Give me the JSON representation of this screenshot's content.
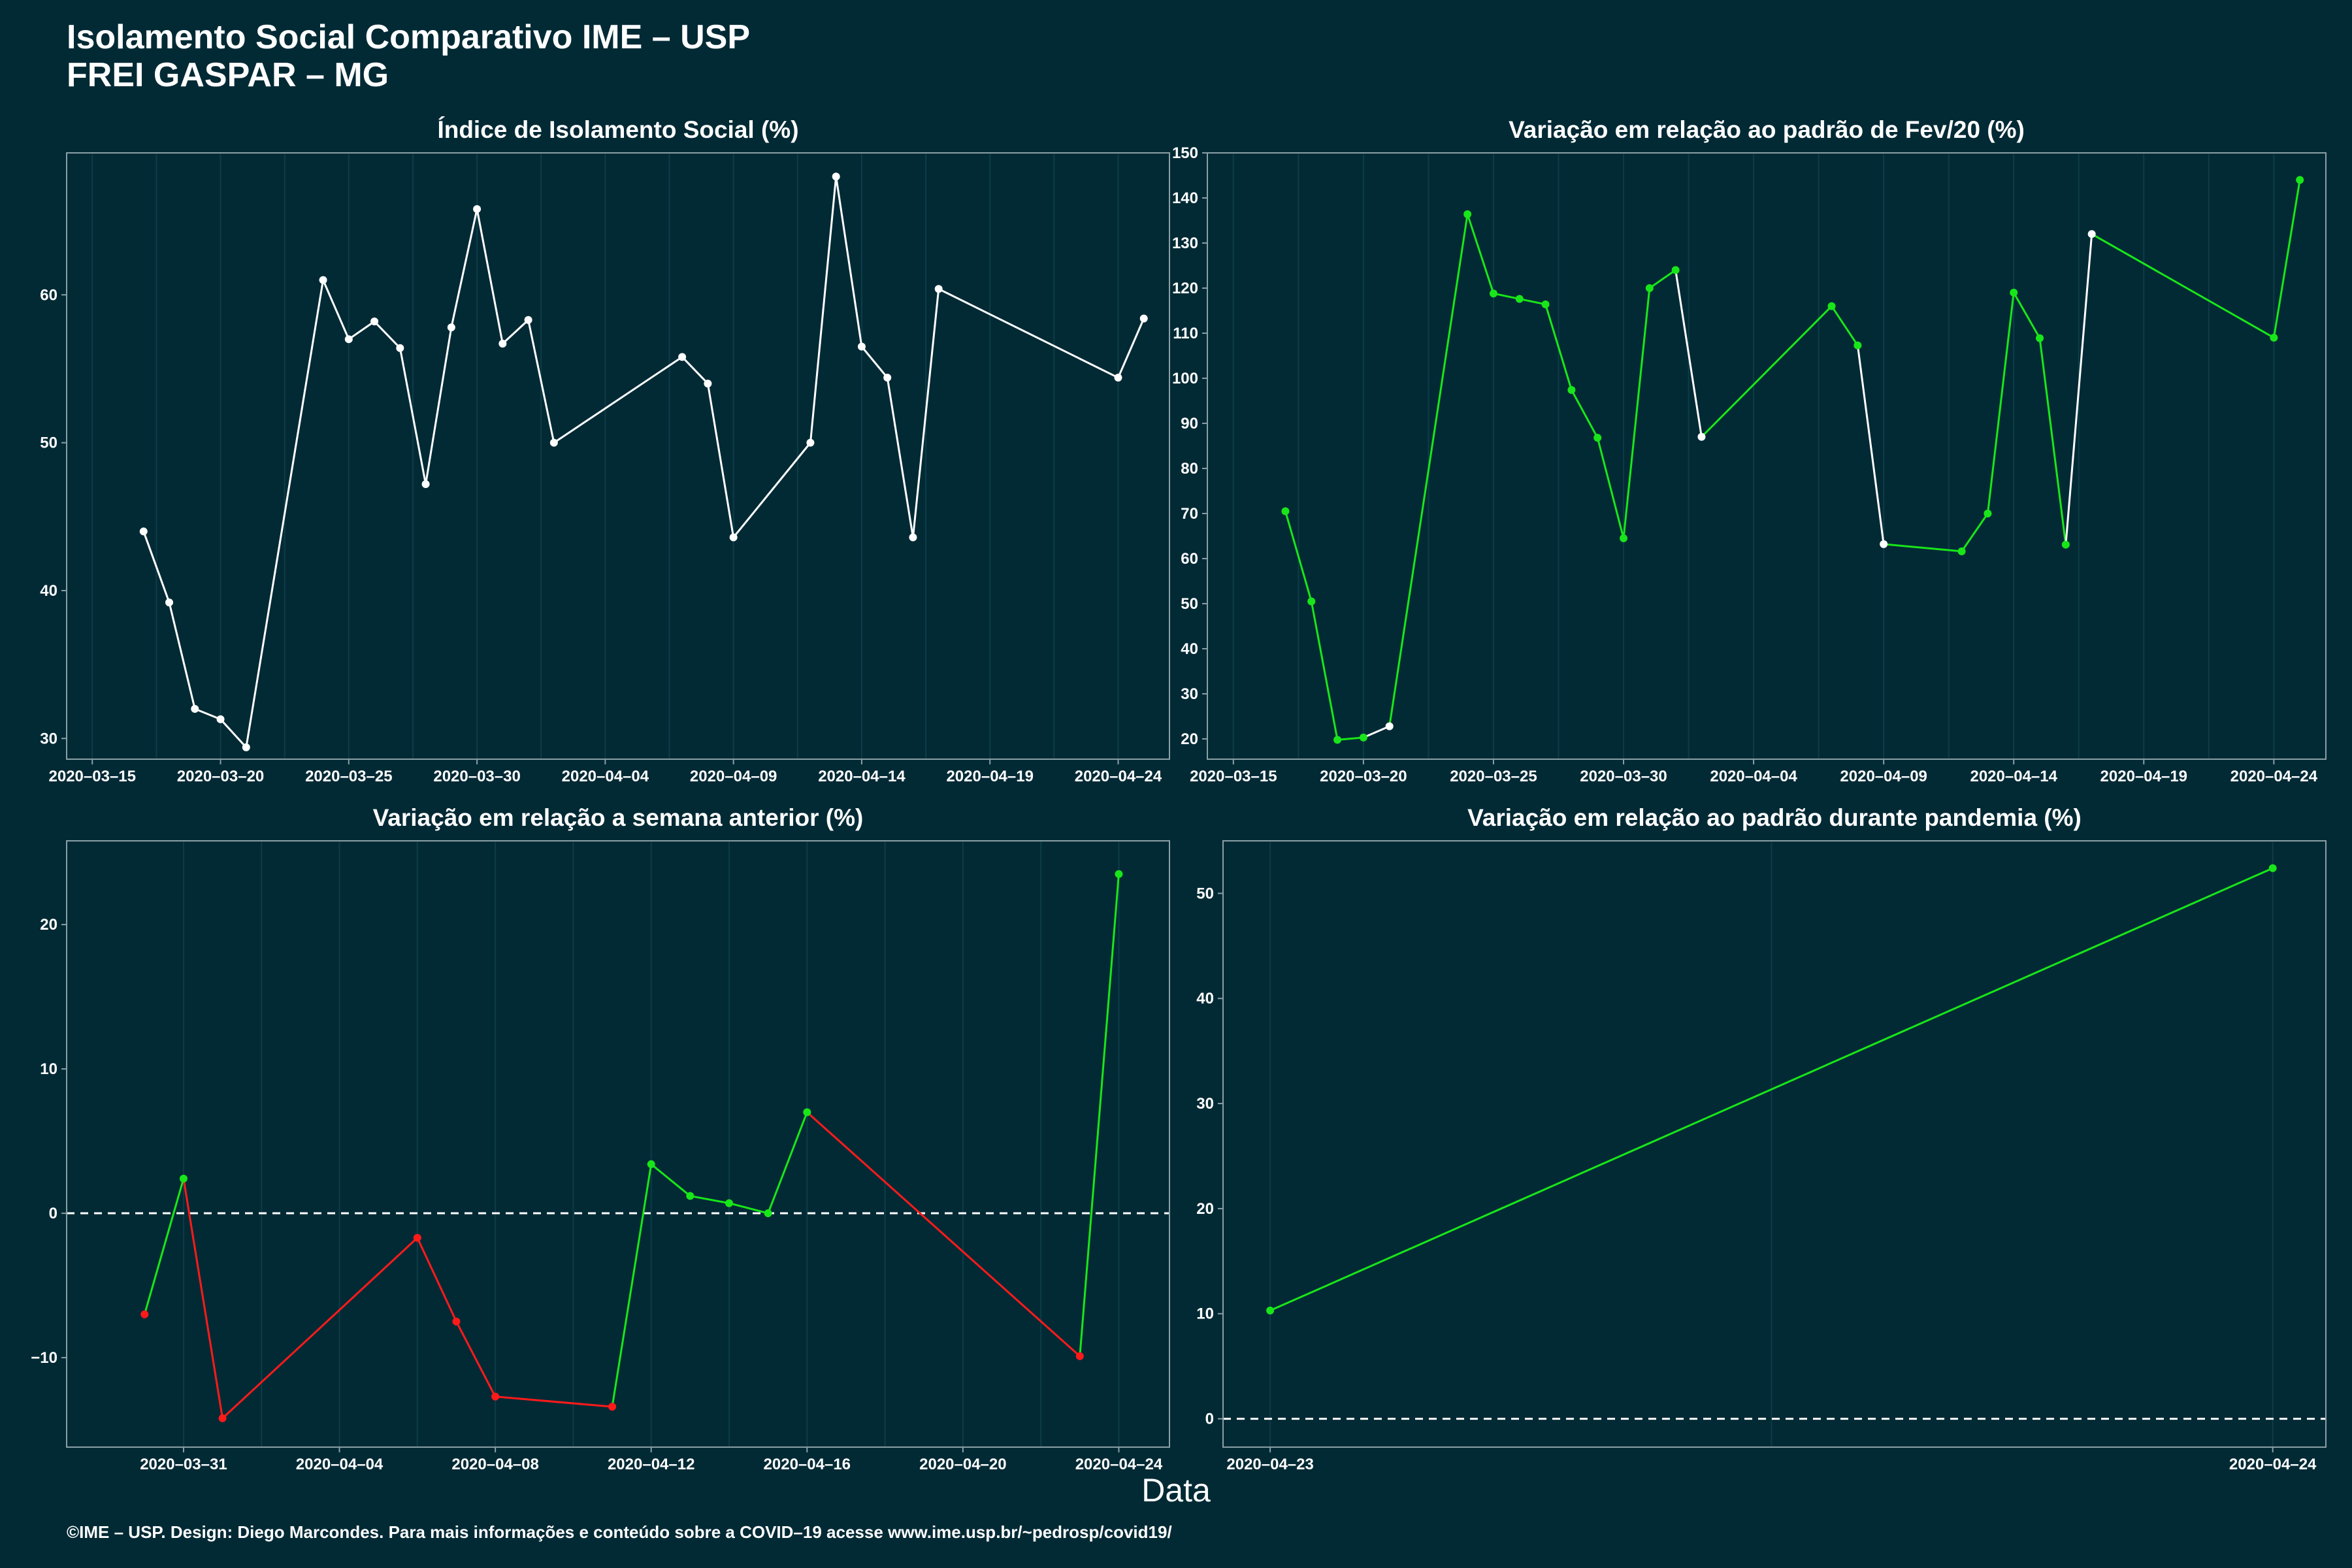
{
  "header": {
    "title": "Isolamento Social Comparativo IME – USP",
    "subtitle": "FREI GASPAR – MG"
  },
  "xlabel": "Data",
  "footer": "©IME – USP. Design: Diego Marcondes. Para mais informações e conteúdo sobre a COVID–19 acesse www.ime.usp.br/~pedrosp/covid19/",
  "colors": {
    "background": "#022a35",
    "line_white": "#ffffff",
    "up": "#19e619",
    "down": "#ff1a1a",
    "frame": "#8aa0a6",
    "grid": "#0d3c47"
  },
  "chart_data": [
    {
      "type": "line",
      "title": "Índice de Isolamento Social (%)",
      "x_ticks": [
        "2020–03–15",
        "2020–03–20",
        "2020–03–25",
        "2020–03–30",
        "2020–04–04",
        "2020–04–09",
        "2020–04–14",
        "2020–04–19",
        "2020–04–24"
      ],
      "y_ticks": [
        30,
        40,
        50,
        60
      ],
      "xlim": [
        "2020-03-14",
        "2020-04-26"
      ],
      "ylim": [
        28.6,
        69.6
      ],
      "reference_line": null,
      "series": [
        {
          "x": [
            "2020-03-17",
            "2020-03-18",
            "2020-03-19",
            "2020-03-20",
            "2020-03-21",
            "2020-03-24",
            "2020-03-25",
            "2020-03-26",
            "2020-03-27",
            "2020-03-28",
            "2020-03-29",
            "2020-03-30",
            "2020-03-31",
            "2020-04-01",
            "2020-04-02",
            "2020-04-07",
            "2020-04-08",
            "2020-04-09",
            "2020-04-12",
            "2020-04-13",
            "2020-04-14",
            "2020-04-15",
            "2020-04-16",
            "2020-04-17",
            "2020-04-24",
            "2020-04-25"
          ],
          "y": [
            44.0,
            39.2,
            32.0,
            31.3,
            29.4,
            61.0,
            57.0,
            58.2,
            56.4,
            47.2,
            57.8,
            65.8,
            56.7,
            58.3,
            50.0,
            55.8,
            54.0,
            43.6,
            50.0,
            68.0,
            56.5,
            54.4,
            43.6,
            60.4,
            54.4,
            58.4
          ],
          "colors": [
            "w",
            "w",
            "w",
            "w",
            "w",
            "w",
            "w",
            "w",
            "w",
            "w",
            "w",
            "w",
            "w",
            "w",
            "w",
            "w",
            "w",
            "w",
            "w",
            "w",
            "w",
            "w",
            "w",
            "w",
            "w",
            "w"
          ]
        }
      ]
    },
    {
      "type": "line",
      "title": "Variação em relação ao padrão de Fev/20 (%)",
      "x_ticks": [
        "2020–03–15",
        "2020–03–20",
        "2020–03–25",
        "2020–03–30",
        "2020–04–04",
        "2020–04–09",
        "2020–04–14",
        "2020–04–19",
        "2020–04–24"
      ],
      "y_ticks": [
        20,
        30,
        40,
        50,
        60,
        70,
        80,
        90,
        100,
        110,
        120,
        130,
        140,
        150
      ],
      "xlim": [
        "2020-03-14",
        "2020-04-26"
      ],
      "ylim": [
        15.5,
        150
      ],
      "reference_line": null,
      "series": [
        {
          "x": [
            "2020-03-17",
            "2020-03-18",
            "2020-03-19",
            "2020-03-20",
            "2020-03-21",
            "2020-03-24",
            "2020-03-25",
            "2020-03-26",
            "2020-03-27",
            "2020-03-28",
            "2020-03-29",
            "2020-03-30",
            "2020-03-31",
            "2020-04-01",
            "2020-04-02",
            "2020-04-07",
            "2020-04-08",
            "2020-04-09",
            "2020-04-12",
            "2020-04-13",
            "2020-04-14",
            "2020-04-15",
            "2020-04-16",
            "2020-04-17",
            "2020-04-24",
            "2020-04-25"
          ],
          "y": [
            70.5,
            50.5,
            19.8,
            20.3,
            22.8,
            136.4,
            118.8,
            117.6,
            116.4,
            97.4,
            86.8,
            64.5,
            120.0,
            124.0,
            87.0,
            116.0,
            107.3,
            63.2,
            61.6,
            70.0,
            119.0,
            108.9,
            63.1,
            132.0,
            109.0,
            144.0
          ],
          "colors": [
            "g",
            "g",
            "g",
            "g",
            "w",
            "g",
            "g",
            "g",
            "g",
            "g",
            "g",
            "g",
            "g",
            "g",
            "w",
            "g",
            "g",
            "w",
            "g",
            "g",
            "g",
            "g",
            "g",
            "w",
            "g",
            "g"
          ]
        }
      ]
    },
    {
      "type": "line",
      "title": "Variação em relação a semana anterior (%)",
      "x_ticks": [
        "2020–03–31",
        "2020–04–04",
        "2020–04–08",
        "2020–04–12",
        "2020–04–16",
        "2020–04–20",
        "2020–04–24"
      ],
      "y_ticks": [
        -10,
        0,
        10,
        20
      ],
      "xlim": [
        "2020-03-28",
        "2020-04-25.3"
      ],
      "ylim": [
        -16.2,
        25.8
      ],
      "reference_line": 0,
      "series": [
        {
          "x": [
            "2020-03-30",
            "2020-03-31",
            "2020-04-01",
            "2020-04-06",
            "2020-04-07",
            "2020-04-08",
            "2020-04-11",
            "2020-04-12",
            "2020-04-13",
            "2020-04-14",
            "2020-04-15",
            "2020-04-16",
            "2020-04-23",
            "2020-04-24"
          ],
          "y": [
            -7.0,
            2.4,
            -14.2,
            -1.7,
            -7.5,
            -12.7,
            -13.4,
            3.4,
            1.2,
            0.7,
            0.0,
            7.0,
            -9.9,
            23.5
          ],
          "colors": [
            "r",
            "g",
            "r",
            "r",
            "r",
            "r",
            "r",
            "g",
            "g",
            "g",
            "g",
            "g",
            "r",
            "g"
          ]
        }
      ]
    },
    {
      "type": "line",
      "title": "Variação em relação ao padrão durante pandemia (%)",
      "x_ticks": [
        "2020–04–23",
        "2020–04–24"
      ],
      "y_ticks": [
        0,
        10,
        20,
        30,
        40,
        50
      ],
      "xlim": [
        "2020-04-22.953",
        "2020-04-24.053"
      ],
      "ylim": [
        -2.7,
        55.0
      ],
      "reference_line": 0,
      "series": [
        {
          "x": [
            "2020-04-23",
            "2020-04-24"
          ],
          "y": [
            10.3,
            52.4
          ],
          "colors": [
            "g",
            "g"
          ]
        }
      ]
    }
  ]
}
